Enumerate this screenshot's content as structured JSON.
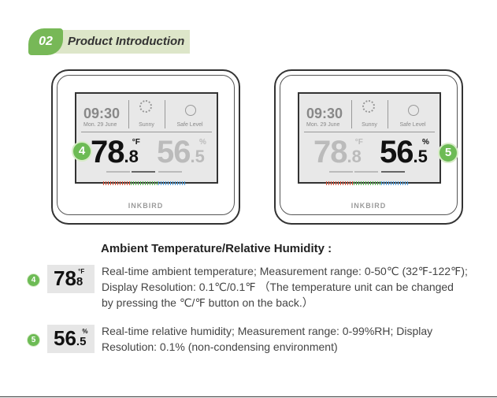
{
  "header": {
    "number": "02",
    "title": "Product Introduction"
  },
  "devices": [
    {
      "badge": "4",
      "time": "09:30",
      "date": "Mon. 29 June",
      "weather": "Sunny",
      "comfort": "Safe Level",
      "temperature": {
        "integer": "78",
        "decimal": ".8",
        "unit": "°F"
      },
      "humidity": {
        "integer": "56",
        "decimal": ".5",
        "unit": "%"
      },
      "brand": "INKBIRD"
    },
    {
      "badge": "5",
      "time": "09:30",
      "date": "Mon. 29 June",
      "weather": "Sunny",
      "comfort": "Safe Level",
      "temperature": {
        "integer": "78",
        "decimal": ".8",
        "unit": "°F"
      },
      "humidity": {
        "integer": "56",
        "decimal": ".5",
        "unit": "%"
      },
      "brand": "INKBIRD"
    }
  ],
  "section": {
    "title": "Ambient Temperature/Relative Humidity",
    "colon": ":"
  },
  "items": [
    {
      "badge": "4",
      "display": {
        "integer": "78",
        "decimal": "8",
        "unit": "°F"
      },
      "text": "Real-time ambient temperature; Measurement range: 0-50℃ (32℉-122℉); Display Resolution: 0.1℃/0.1℉ （The temperature unit can be changed by pressing the ℃/℉ button on the back.）"
    },
    {
      "badge": "5",
      "display": {
        "integer": "56",
        "decimal": ".5",
        "unit": "%"
      },
      "text": "Real-time relative humidity; Measurement range: 0-99%RH; Display Resolution: 0.1% (non-condensing environment)"
    }
  ]
}
